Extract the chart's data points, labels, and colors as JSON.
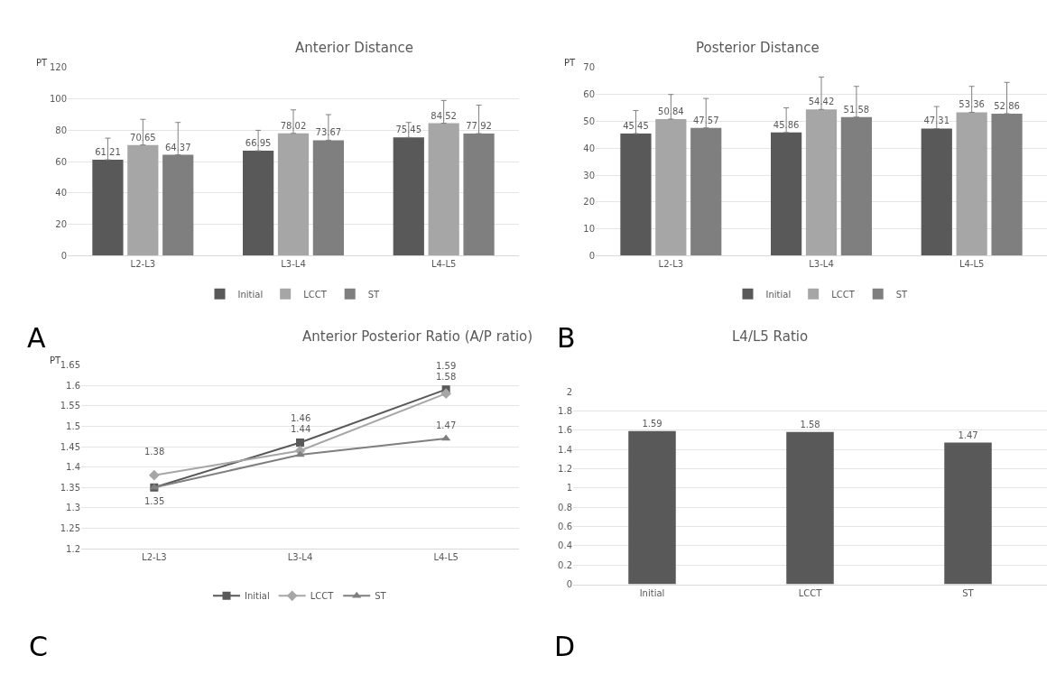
{
  "chart_data": [
    {
      "type": "bar",
      "title": "Anterior Distance",
      "ylabel": "PT",
      "categories": [
        "L2-L3",
        "L3-L4",
        "L4-L5"
      ],
      "ylim": [
        0,
        120
      ],
      "yticks": [
        0,
        20,
        40,
        60,
        80,
        100,
        120
      ],
      "grid": "y",
      "legend": "bottom",
      "data_labels": true,
      "annotations": [
        "A"
      ],
      "series": [
        {
          "name": "Initial",
          "color": "#595959",
          "values": [
            61.21,
            66.95,
            75.45
          ],
          "errors": [
            [
              61.21,
              75
            ],
            [
              66.95,
              80
            ],
            [
              75.45,
              85
            ]
          ]
        },
        {
          "name": "LCCT",
          "color": "#a6a6a6",
          "values": [
            70.65,
            78.02,
            84.52
          ],
          "errors": [
            [
              70.65,
              87
            ],
            [
              78.02,
              93
            ],
            [
              84.52,
              99
            ]
          ]
        },
        {
          "name": "ST",
          "color": "#7f7f7f",
          "values": [
            64.37,
            73.67,
            77.92
          ],
          "errors": [
            [
              64.37,
              85
            ],
            [
              73.67,
              90
            ],
            [
              77.92,
              96
            ]
          ]
        }
      ]
    },
    {
      "type": "bar",
      "title": "Posterior Distance",
      "ylabel": "PT",
      "categories": [
        "L2-L3",
        "L3-L4",
        "L4-L5"
      ],
      "ylim": [
        0,
        70
      ],
      "yticks": [
        0,
        10,
        20,
        30,
        40,
        50,
        60,
        70
      ],
      "grid": "y",
      "legend": "bottom",
      "data_labels": true,
      "annotations": [
        "B"
      ],
      "series": [
        {
          "name": "Initial",
          "color": "#595959",
          "values": [
            45.45,
            45.86,
            47.31
          ],
          "errors": [
            [
              45.45,
              54
            ],
            [
              45.86,
              55
            ],
            [
              47.31,
              55.5
            ]
          ]
        },
        {
          "name": "LCCT",
          "color": "#a6a6a6",
          "values": [
            50.84,
            54.42,
            53.36
          ],
          "errors": [
            [
              50.84,
              60
            ],
            [
              54.42,
              66.5
            ],
            [
              53.36,
              63
            ]
          ]
        },
        {
          "name": "ST",
          "color": "#7f7f7f",
          "values": [
            47.57,
            51.58,
            52.86
          ],
          "errors": [
            [
              47.57,
              58.5
            ],
            [
              51.58,
              63
            ],
            [
              52.86,
              64.5
            ]
          ]
        }
      ]
    },
    {
      "type": "line",
      "title": "Anterior Posterior Ratio (A/P ratio)",
      "ylabel": "PT",
      "categories": [
        "L2-L3",
        "L3-L4",
        "L4-L5"
      ],
      "ylim": [
        1.2,
        1.65
      ],
      "yticks": [
        1.2,
        1.25,
        1.3,
        1.35,
        1.4,
        1.45,
        1.5,
        1.55,
        1.6,
        1.65
      ],
      "grid": "y",
      "legend": "bottom",
      "annotations": [
        "C"
      ],
      "series": [
        {
          "name": "Initial",
          "color": "#595959",
          "marker": "square",
          "values": [
            1.35,
            1.46,
            1.59
          ],
          "value_labels": [
            "1.35",
            "1.46",
            "1.59"
          ]
        },
        {
          "name": "LCCT",
          "color": "#a6a6a6",
          "marker": "diamond",
          "values": [
            1.38,
            1.44,
            1.58
          ],
          "value_labels": [
            "1.38",
            "1.44",
            "1.58"
          ]
        },
        {
          "name": "ST",
          "color": "#7f7f7f",
          "marker": "triangle",
          "values": [
            1.35,
            1.43,
            1.47
          ],
          "value_labels": [
            null,
            null,
            "1.47"
          ]
        }
      ]
    },
    {
      "type": "bar",
      "title": "L4/L5 Ratio",
      "categories": [
        "Initial",
        "LCCT",
        "ST"
      ],
      "ylim": [
        0,
        2
      ],
      "yticks": [
        0,
        0.2,
        0.4,
        0.6,
        0.8,
        1,
        1.2,
        1.4,
        1.6,
        1.8,
        2
      ],
      "grid": "y",
      "data_labels": true,
      "annotations": [
        "D"
      ],
      "series": [
        {
          "color": "#595959",
          "values": [
            1.59,
            1.58,
            1.47
          ]
        }
      ]
    }
  ]
}
